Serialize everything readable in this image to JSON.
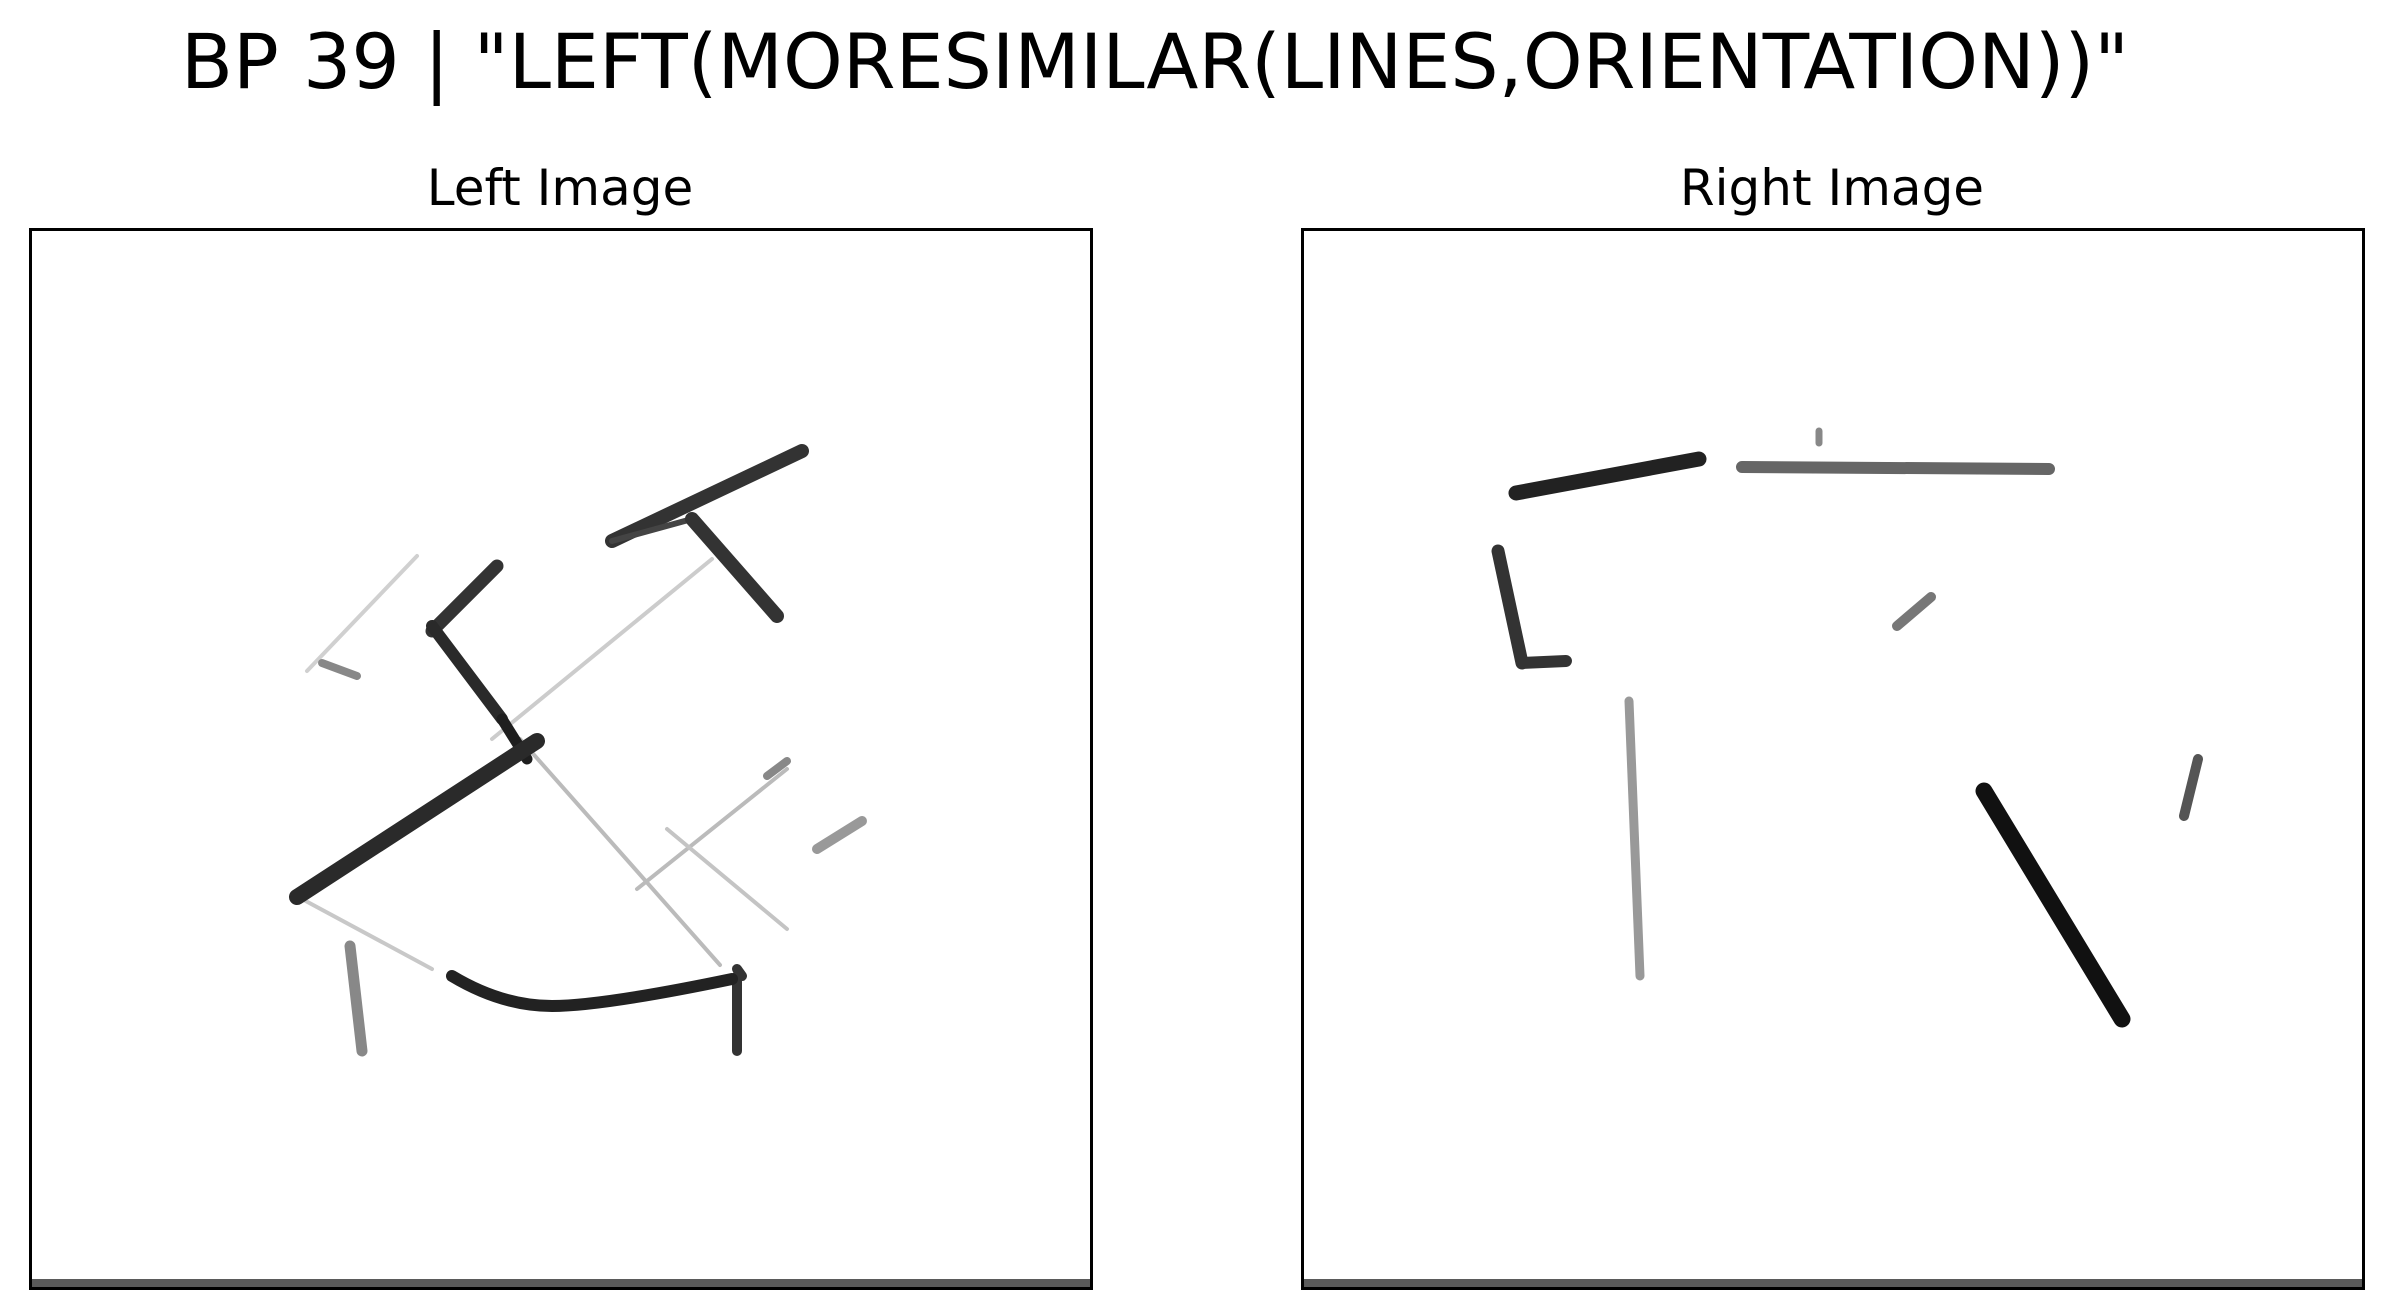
{
  "figure": {
    "title": "BP 39 | \"LEFT(MORESIMILAR(LINES,ORIENTATION))\""
  },
  "panels": [
    {
      "title": "Left Image"
    },
    {
      "title": "Right Image"
    }
  ],
  "colors": {
    "background": "#ffffff",
    "stroke_dark": "#111111",
    "stroke_mid": "#555555",
    "stroke_light": "#aaaaaa",
    "frame": "#000000"
  }
}
